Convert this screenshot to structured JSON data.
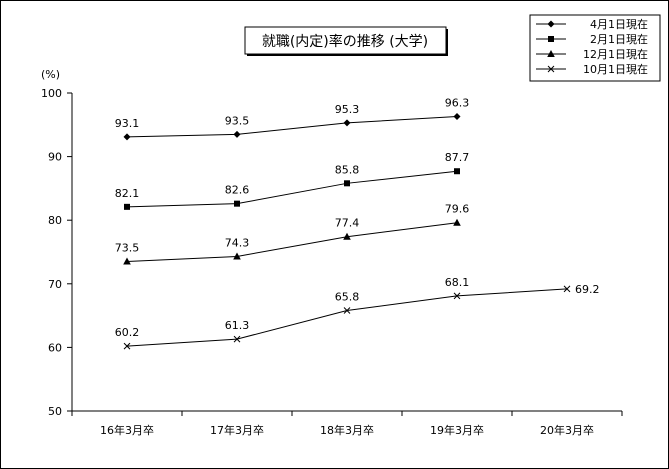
{
  "chart_data": {
    "type": "line",
    "title": "就職(内定)率の推移 (大学)",
    "ylabel": "(%)",
    "xlabel": "",
    "ylim": [
      50,
      100
    ],
    "yticks": [
      50,
      60,
      70,
      80,
      90,
      100
    ],
    "categories": [
      "16年3月卒",
      "17年3月卒",
      "18年3月卒",
      "19年3月卒",
      "20年3月卒"
    ],
    "series": [
      {
        "name": "4月1日現在",
        "marker": "diamond",
        "values": [
          93.1,
          93.5,
          95.3,
          96.3,
          null
        ],
        "labels": [
          "93.1",
          "93.5",
          "95.3",
          "96.3",
          null
        ]
      },
      {
        "name": "2月1日現在",
        "marker": "square",
        "values": [
          82.1,
          82.6,
          85.8,
          87.7,
          null
        ],
        "labels": [
          "82.1",
          "82.6",
          "85.8",
          "87.7",
          null
        ]
      },
      {
        "name": "12月1日現在",
        "marker": "triangle",
        "values": [
          73.5,
          74.3,
          77.4,
          79.6,
          null
        ],
        "labels": [
          "73.5",
          "74.3",
          "77.4",
          "79.6",
          null
        ]
      },
      {
        "name": "10月1日現在",
        "marker": "x",
        "values": [
          60.2,
          61.3,
          65.8,
          68.1,
          69.2
        ],
        "labels": [
          "60.2",
          "61.3",
          "65.8",
          "68.1",
          "69.2"
        ]
      }
    ],
    "grid": false,
    "legend_position": "top-right"
  }
}
